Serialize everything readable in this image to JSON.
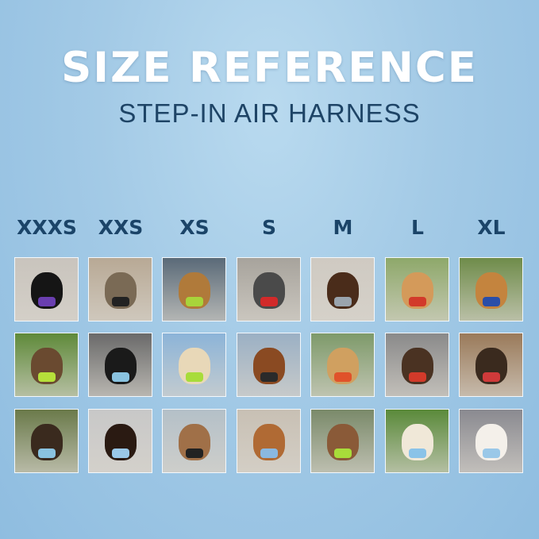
{
  "header": {
    "title": "SIZE REFERENCE",
    "subtitle": "STEP-IN AIR HARNESS"
  },
  "sizes": [
    "XXXS",
    "XXS",
    "XS",
    "S",
    "M",
    "L",
    "XL"
  ],
  "photos": [
    [
      {
        "bg": "#c9c4bd",
        "dog": "#151515",
        "harness": "#6a3fb0"
      },
      {
        "bg": "#b8a995",
        "dog": "#7a6a55",
        "harness": "#222"
      },
      {
        "bg": "#5a6a78",
        "dog": "#b07a3a",
        "harness": "#a8d43a"
      },
      {
        "bg": "#a7a39c",
        "dog": "#4a4a4a",
        "harness": "#d22a2a"
      },
      {
        "bg": "#cfcac2",
        "dog": "#4a2c1a",
        "harness": "#9aa4ad"
      },
      {
        "bg": "#8ea86a",
        "dog": "#d49a5a",
        "harness": "#d23a2a"
      },
      {
        "bg": "#6f8c4a",
        "dog": "#c4843e",
        "harness": "#2a4ea8"
      }
    ],
    [
      {
        "bg": "#5f8a3a",
        "dog": "#6a4a30",
        "harness": "#b6e03a"
      },
      {
        "bg": "#6a6a6a",
        "dog": "#1a1a1a",
        "harness": "#8ac3e0"
      },
      {
        "bg": "#8cb4d8",
        "dog": "#e8d8b8",
        "harness": "#a8dc3a"
      },
      {
        "bg": "#9bb0c4",
        "dog": "#8a4a22",
        "harness": "#2a2a2a"
      },
      {
        "bg": "#7e9a6a",
        "dog": "#d0a060",
        "harness": "#e0522a"
      },
      {
        "bg": "#8a8a8a",
        "dog": "#4a3222",
        "harness": "#d23a2a"
      },
      {
        "bg": "#9a7a5a",
        "dog": "#3a2a1e",
        "harness": "#d03a3a"
      }
    ],
    [
      {
        "bg": "#6a7a4a",
        "dog": "#3a2a1e",
        "harness": "#8ac3e0"
      },
      {
        "bg": "#c8c8c8",
        "dog": "#2a1a12",
        "harness": "#9ac8e8"
      },
      {
        "bg": "#b4c0c8",
        "dog": "#a07048",
        "harness": "#222"
      },
      {
        "bg": "#c8c0b4",
        "dog": "#b06a34",
        "harness": "#8ab8e0"
      },
      {
        "bg": "#7a8a6a",
        "dog": "#8a5a38",
        "harness": "#a8dc3a"
      },
      {
        "bg": "#5a8a3a",
        "dog": "#f0e8d8",
        "harness": "#8ac3e8"
      },
      {
        "bg": "#8a8a90",
        "dog": "#f4f0ea",
        "harness": "#9ac8e8"
      }
    ]
  ]
}
